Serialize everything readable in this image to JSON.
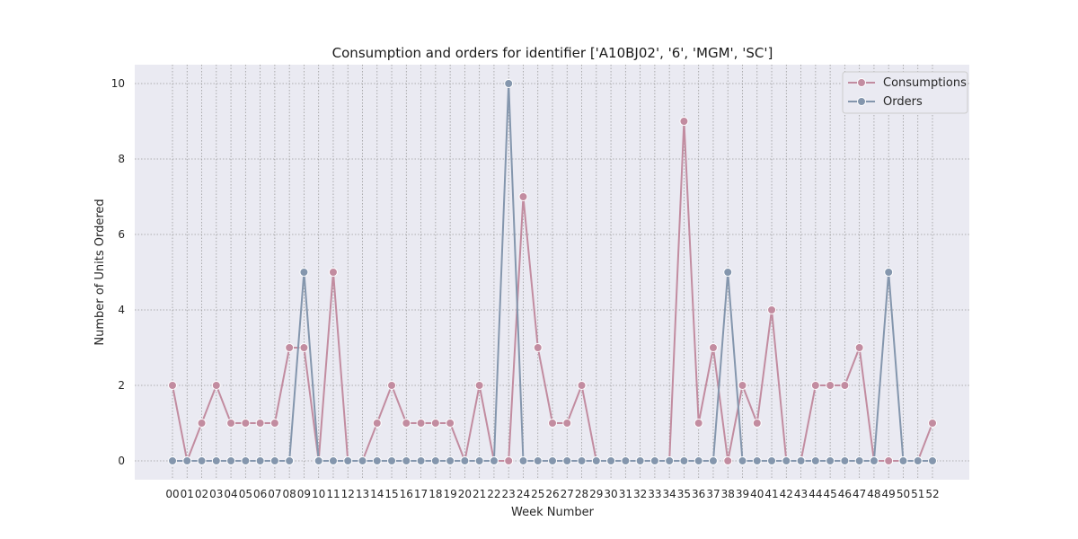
{
  "chart_data": {
    "type": "line",
    "title": "Consumption and orders for identifier ['A10BJ02', '6', 'MGM', 'SC']",
    "xlabel": "Week Number",
    "ylabel": "Number of Units Ordered",
    "categories": [
      "00",
      "01",
      "02",
      "03",
      "04",
      "05",
      "06",
      "07",
      "08",
      "09",
      "10",
      "11",
      "12",
      "13",
      "14",
      "15",
      "16",
      "17",
      "18",
      "19",
      "20",
      "21",
      "22",
      "23",
      "24",
      "25",
      "26",
      "27",
      "28",
      "29",
      "30",
      "31",
      "32",
      "33",
      "34",
      "35",
      "36",
      "37",
      "38",
      "39",
      "40",
      "41",
      "42",
      "43",
      "44",
      "45",
      "46",
      "47",
      "48",
      "49",
      "50",
      "51",
      "52"
    ],
    "yticks": [
      0,
      2,
      4,
      6,
      8,
      10
    ],
    "ylim": [
      -0.5,
      10.5
    ],
    "grid": true,
    "legend_position": "top-right",
    "series": [
      {
        "name": "Consumptions",
        "color": "#c28ca0",
        "values": [
          2,
          0,
          1,
          2,
          1,
          1,
          1,
          1,
          3,
          3,
          0,
          5,
          0,
          0,
          1,
          2,
          1,
          1,
          1,
          1,
          0,
          2,
          0,
          0,
          7,
          3,
          1,
          1,
          2,
          0,
          0,
          0,
          0,
          0,
          0,
          9,
          1,
          3,
          0,
          2,
          1,
          4,
          0,
          0,
          2,
          2,
          2,
          3,
          0,
          0,
          0,
          0,
          1
        ]
      },
      {
        "name": "Orders",
        "color": "#8496ad",
        "values": [
          0,
          0,
          0,
          0,
          0,
          0,
          0,
          0,
          0,
          5,
          0,
          0,
          0,
          0,
          0,
          0,
          0,
          0,
          0,
          0,
          0,
          0,
          0,
          10,
          0,
          0,
          0,
          0,
          0,
          0,
          0,
          0,
          0,
          0,
          0,
          0,
          0,
          0,
          5,
          0,
          0,
          0,
          0,
          0,
          0,
          0,
          0,
          0,
          0,
          5,
          0,
          0,
          0
        ]
      }
    ]
  }
}
